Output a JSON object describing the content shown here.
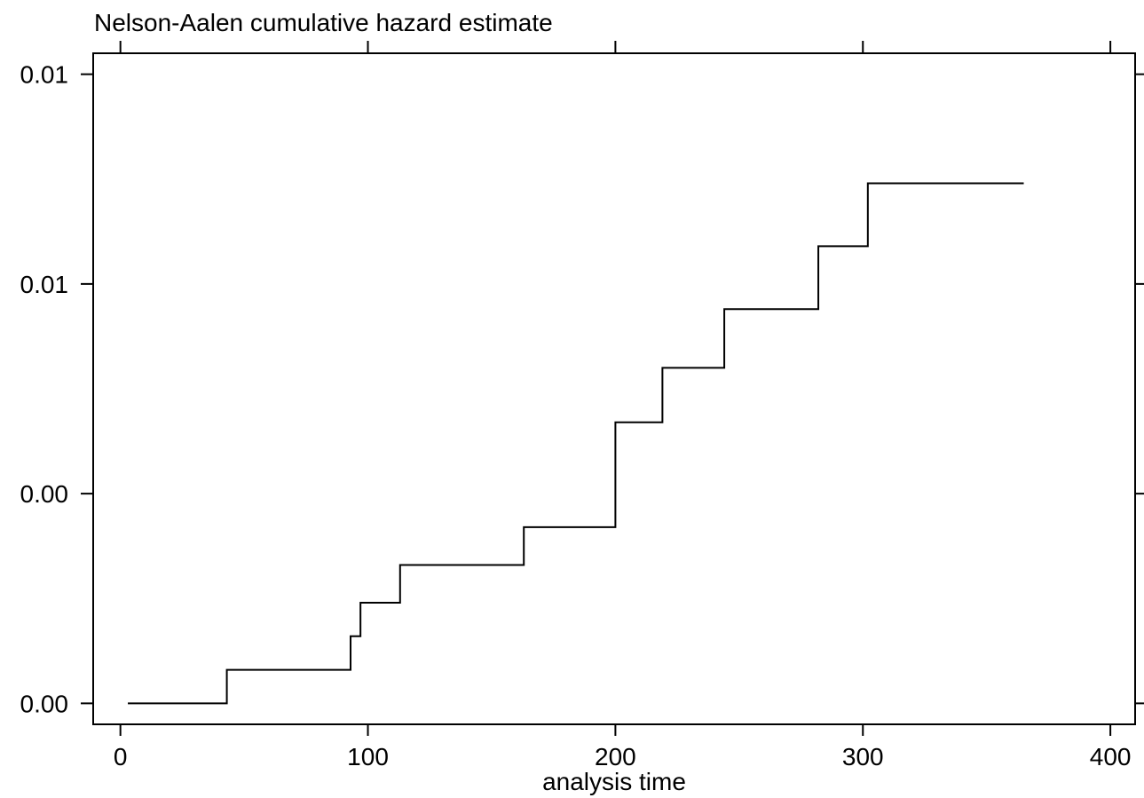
{
  "chart_data": {
    "type": "line",
    "step": true,
    "title": "Nelson-Aalen cumulative hazard estimate",
    "xlabel": "analysis time",
    "ylabel": "",
    "xlim": [
      -11,
      410
    ],
    "ylim": [
      -0.0005,
      0.0155
    ],
    "x_ticks": [
      0,
      100,
      200,
      300,
      400
    ],
    "x_tick_labels": [
      "0",
      "100",
      "200",
      "300",
      "400"
    ],
    "y_ticks": [
      0.0,
      0.005,
      0.01,
      0.015
    ],
    "y_tick_labels": [
      "0.00",
      "0.00",
      "0.01",
      "0.01"
    ],
    "grid": false,
    "legend": "none",
    "series": [
      {
        "color": "#000000",
        "x": [
          3,
          43,
          93,
          97,
          113,
          163,
          200,
          219,
          244,
          282,
          302,
          365
        ],
        "y": [
          0.0,
          0.0008,
          0.0016,
          0.0024,
          0.0033,
          0.0042,
          0.0067,
          0.008,
          0.0094,
          0.0109,
          0.0124,
          0.0124
        ]
      }
    ]
  }
}
